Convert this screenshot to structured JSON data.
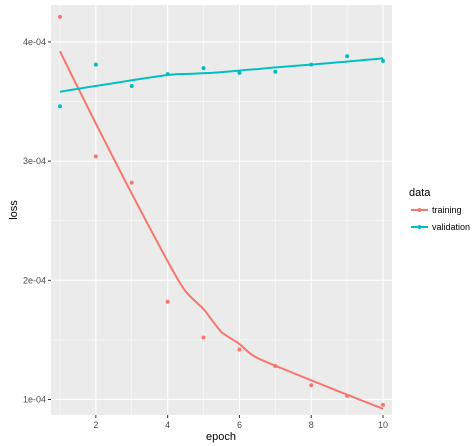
{
  "chart_data": {
    "type": "scatter",
    "xlabel": "epoch",
    "ylabel": "loss",
    "xlim": [
      0.75,
      10.25
    ],
    "ylim": [
      8.7e-05,
      0.000431
    ],
    "x_ticks": [
      2,
      4,
      6,
      8,
      10
    ],
    "x_tick_labels": [
      "2",
      "4",
      "6",
      "8",
      "10"
    ],
    "y_ticks": [
      0.0001,
      0.0002,
      0.0003,
      0.0004
    ],
    "y_tick_labels": [
      "1e-04",
      "2e-04",
      "3e-04",
      "4e-04"
    ],
    "grid": true,
    "smoothed_trend_lines": true,
    "legend": {
      "title": "data",
      "position": "right"
    },
    "series": [
      {
        "name": "training",
        "color": "#F8766D",
        "x": [
          1,
          2,
          3,
          4,
          5,
          6,
          7,
          8,
          9,
          10
        ],
        "values": [
          0.000421,
          0.000304,
          0.000282,
          0.000182,
          0.000152,
          0.000142,
          0.000128,
          0.000112,
          0.000103,
          9.55e-05
        ]
      },
      {
        "name": "validation",
        "color": "#00BFC4",
        "x": [
          1,
          2,
          3,
          4,
          5,
          6,
          7,
          8,
          9,
          10
        ],
        "values": [
          0.000346,
          0.000381,
          0.000363,
          0.000373,
          0.000378,
          0.000374,
          0.000375,
          0.000381,
          0.000388,
          0.000384
        ]
      }
    ]
  }
}
